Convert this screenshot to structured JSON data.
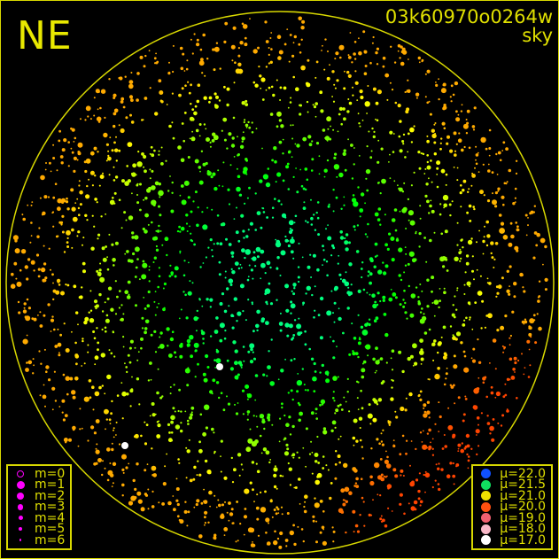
{
  "header": {
    "direction": "NE",
    "image_id": "03k60970o0264w",
    "mode": "sky"
  },
  "colors": {
    "frame": "#d8d800",
    "horizon": "#d8d800",
    "text": "#e0e000",
    "marker": "#ff00ff"
  },
  "magnitude_legend": [
    {
      "label": "m=0",
      "size": 4,
      "hollow": true
    },
    {
      "label": "m=1",
      "size": 4.5
    },
    {
      "label": "m=2",
      "size": 4
    },
    {
      "label": "m=3",
      "size": 3.3
    },
    {
      "label": "m=4",
      "size": 2.5
    },
    {
      "label": "m=5",
      "size": 2
    },
    {
      "label": "m=6",
      "size": 1.3
    }
  ],
  "brightness_legend": [
    {
      "label": "μ=22.0",
      "color": "#1050ff"
    },
    {
      "label": "μ=21.5",
      "color": "#10e060"
    },
    {
      "label": "μ=21.0",
      "color": "#f0e000"
    },
    {
      "label": "μ=20.0",
      "color": "#ff5010"
    },
    {
      "label": "μ=19.0",
      "color": "#f06070"
    },
    {
      "label": "μ=18.0",
      "color": "#f8b8c8"
    },
    {
      "label": "μ=17.0",
      "color": "#ffffff"
    }
  ],
  "chart_data": {
    "type": "scatter",
    "description_of_encoding": "",
    "projection": "all-sky fisheye, horizon circle",
    "marker_size": "star magnitude",
    "marker_color": "sky brightness μ (mag/arcsec²)",
    "color_scale": [
      22.0,
      21.5,
      21.0,
      20.0,
      19.0,
      18.0,
      17.0
    ],
    "pattern": "darkest (μ≈21.5) near zenith, brightening to μ≈21.0 toward horizon, μ≈20.0 toward lower right"
  }
}
